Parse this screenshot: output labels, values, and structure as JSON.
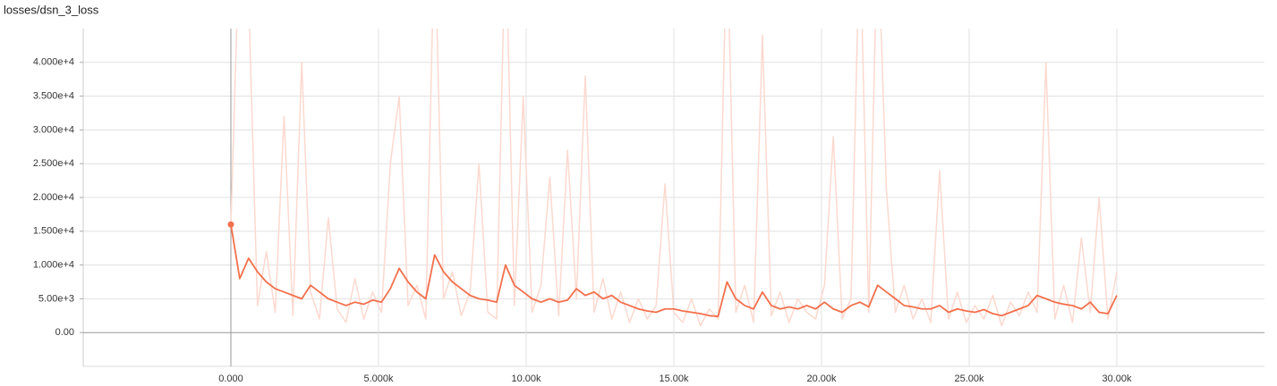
{
  "chart_data": {
    "type": "line",
    "title": "losses/dsn_3_loss",
    "x": [
      0,
      300,
      600,
      900,
      1200,
      1500,
      1800,
      2100,
      2400,
      2700,
      3000,
      3300,
      3600,
      3900,
      4200,
      4500,
      4800,
      5100,
      5400,
      5700,
      6000,
      6300,
      6600,
      6900,
      7200,
      7500,
      7800,
      8100,
      8400,
      8700,
      9000,
      9300,
      9600,
      9900,
      10200,
      10500,
      10800,
      11100,
      11400,
      11700,
      12000,
      12300,
      12600,
      12900,
      13200,
      13500,
      13800,
      14100,
      14400,
      14700,
      15000,
      15300,
      15600,
      15900,
      16200,
      16500,
      16800,
      17100,
      17400,
      17700,
      18000,
      18300,
      18600,
      18900,
      19200,
      19500,
      19800,
      20100,
      20400,
      20700,
      21000,
      21300,
      21600,
      21900,
      22200,
      22500,
      22800,
      23100,
      23400,
      23700,
      24000,
      24300,
      24600,
      24900,
      25200,
      25500,
      25800,
      26100,
      26400,
      26700,
      27000,
      27300,
      27600,
      27900,
      28200,
      28500,
      28800,
      29100,
      29400,
      29700,
      30000
    ],
    "series": [
      {
        "color": "#fcd9cf",
        "values": [
          16000,
          60000,
          50000,
          4000,
          12000,
          3000,
          32000,
          2500,
          40000,
          6000,
          2000,
          17000,
          3500,
          1500,
          8000,
          2000,
          6000,
          3000,
          25000,
          35000,
          4000,
          7000,
          2000,
          60000,
          5000,
          9000,
          2500,
          6000,
          25000,
          3000,
          2000,
          60000,
          4000,
          35000,
          3000,
          7000,
          23000,
          2500,
          27000,
          5000,
          38000,
          3000,
          8000,
          2000,
          6000,
          1500,
          5000,
          2000,
          4000,
          22000,
          3000,
          1500,
          5000,
          1000,
          3500,
          2000,
          60000,
          3000,
          7000,
          1500,
          44000,
          2500,
          6000,
          1500,
          5000,
          3000,
          2000,
          7000,
          29000,
          2000,
          5000,
          60000,
          3000,
          60000,
          21000,
          3000,
          7000,
          2000,
          5000,
          1500,
          24000,
          2000,
          6000,
          1500,
          4000,
          2000,
          5500,
          1000,
          4500,
          2500,
          6000,
          3000,
          40000,
          2000,
          7000,
          1500,
          14000,
          3000,
          20000,
          2000,
          9000
        ]
      },
      {
        "color": "#f2704c",
        "values": [
          16000,
          8000,
          11000,
          9000,
          7500,
          6500,
          6000,
          5500,
          5000,
          7000,
          6000,
          5000,
          4500,
          4000,
          4500,
          4200,
          4800,
          4500,
          6500,
          9500,
          7500,
          6000,
          5000,
          11500,
          9000,
          7500,
          6500,
          5500,
          5000,
          4800,
          4500,
          10000,
          7000,
          6000,
          5000,
          4500,
          5000,
          4500,
          4800,
          6500,
          5500,
          6000,
          5000,
          5500,
          4500,
          4000,
          3500,
          3200,
          3000,
          3500,
          3500,
          3200,
          3000,
          2800,
          2500,
          2400,
          7500,
          5000,
          4000,
          3500,
          6000,
          4000,
          3500,
          3800,
          3500,
          4000,
          3500,
          4500,
          3500,
          3000,
          4000,
          4500,
          3800,
          7000,
          6000,
          5000,
          4000,
          3800,
          3500,
          3500,
          4000,
          3000,
          3500,
          3200,
          3000,
          3400,
          2800,
          2500,
          3000,
          3500,
          4000,
          5500,
          5000,
          4500,
          4200,
          4000,
          3500,
          4500,
          3000,
          2800,
          5500
        ]
      }
    ],
    "xlim": [
      -5000,
      35000
    ],
    "ylim": [
      -5000,
      45000
    ],
    "xticks": [
      {
        "value": 0,
        "label": "0.000"
      },
      {
        "value": 5000,
        "label": "5.000k"
      },
      {
        "value": 10000,
        "label": "10.00k"
      },
      {
        "value": 15000,
        "label": "15.00k"
      },
      {
        "value": 20000,
        "label": "20.00k"
      },
      {
        "value": 25000,
        "label": "25.00k"
      },
      {
        "value": 30000,
        "label": "30.00k"
      }
    ],
    "yticks": [
      {
        "value": 0,
        "label": "0.00"
      },
      {
        "value": 5000,
        "label": "5.00e+3"
      },
      {
        "value": 10000,
        "label": "1.000e+4"
      },
      {
        "value": 15000,
        "label": "1.500e+4"
      },
      {
        "value": 20000,
        "label": "2.000e+4"
      },
      {
        "value": 25000,
        "label": "2.500e+4"
      },
      {
        "value": 30000,
        "label": "3.000e+4"
      },
      {
        "value": 35000,
        "label": "3.500e+4"
      },
      {
        "value": 40000,
        "label": "4.000e+4"
      }
    ],
    "grid": true
  }
}
